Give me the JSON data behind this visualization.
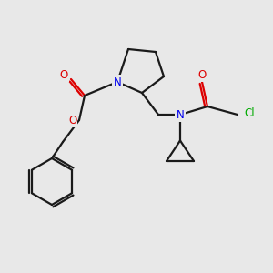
{
  "background_color": "#e8e8e8",
  "bond_color": "#1a1a1a",
  "N_color": "#0000ee",
  "O_color": "#dd0000",
  "Cl_color": "#00aa00",
  "line_width": 1.6,
  "figsize": [
    3.0,
    3.0
  ],
  "dpi": 100,
  "xlim": [
    0,
    10
  ],
  "ylim": [
    0,
    10
  ]
}
